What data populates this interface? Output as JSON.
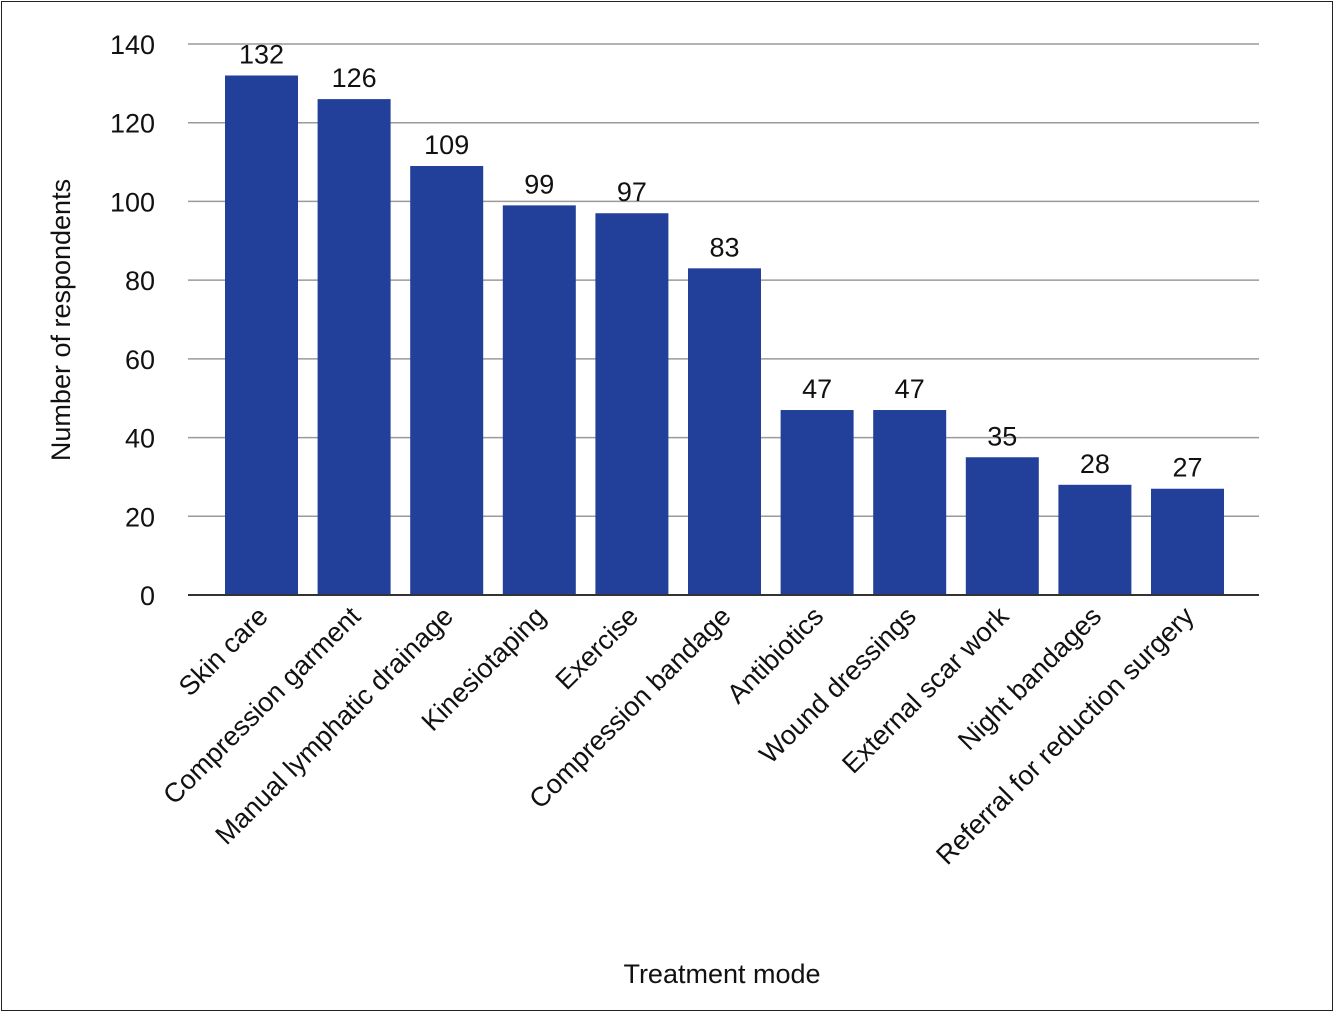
{
  "chart_data": {
    "type": "bar",
    "title": "",
    "xlabel": "Treatment mode",
    "ylabel": "Number of respondents",
    "ylim": [
      0,
      140
    ],
    "yticks": [
      0,
      20,
      40,
      60,
      80,
      100,
      120,
      140
    ],
    "grid": true,
    "categories": [
      "Skin care",
      "Compression garment",
      "Manual lymphatic drainage",
      "Kinesiotaping",
      "Exercise",
      "Compression bandage",
      "Antibiotics",
      "Wound dressings",
      "External scar work",
      "Night bandages",
      "Referral for reduction surgery"
    ],
    "values": [
      132,
      126,
      109,
      99,
      97,
      83,
      47,
      47,
      35,
      28,
      27
    ],
    "colors": {
      "bar": "#22409a",
      "grid": "#9a9a9a",
      "axis": "#333333"
    }
  }
}
